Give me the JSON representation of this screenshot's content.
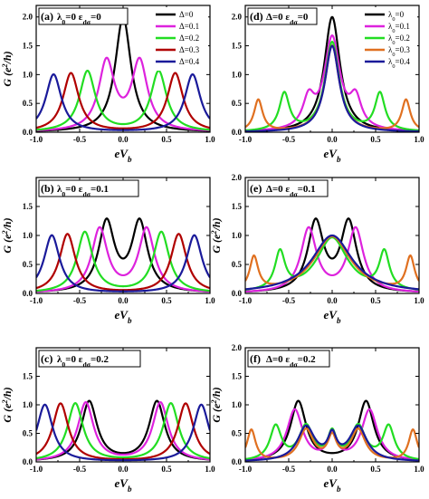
{
  "chart_data": [
    {
      "type": "line",
      "panel_label": "(a)",
      "annotation": [
        "λ",
        "0",
        "=0 ε",
        "dσ",
        "=0"
      ],
      "xlabel": [
        "e",
        "V",
        "b"
      ],
      "ylabel": [
        "G (e",
        "2",
        "/h)"
      ],
      "xlim": [
        -1.0,
        1.0
      ],
      "ylim": [
        0,
        2.2
      ],
      "xticks": [
        "-1.0",
        "-0.5",
        "0.0",
        "0.5",
        "1.0"
      ],
      "yticks": [
        "0.0",
        "0.5",
        "1.0",
        "1.5",
        "2.0"
      ],
      "legend": {
        "placement": "top-right",
        "label_symbol": "Δ"
      },
      "series": [
        {
          "name": "Δ=0",
          "color": "#000000",
          "peaks": [
            {
              "x": 0.0,
              "h": 2.0,
              "w": 0.11
            }
          ]
        },
        {
          "name": "Δ=0.1",
          "color": "#dd22dd",
          "peaks": [
            {
              "x": -0.19,
              "h": 1.2,
              "w": 0.11
            },
            {
              "x": 0.19,
              "h": 1.2,
              "w": 0.11
            }
          ]
        },
        {
          "name": "Δ=0.2",
          "color": "#22dd22",
          "peaks": [
            {
              "x": -0.41,
              "h": 1.05,
              "w": 0.11
            },
            {
              "x": 0.41,
              "h": 1.05,
              "w": 0.11
            }
          ]
        },
        {
          "name": "Δ=0.3",
          "color": "#b00000",
          "peaks": [
            {
              "x": -0.6,
              "h": 1.02,
              "w": 0.11
            },
            {
              "x": 0.6,
              "h": 1.02,
              "w": 0.11
            }
          ]
        },
        {
          "name": "Δ=0.4",
          "color": "#1a1a9a",
          "peaks": [
            {
              "x": -0.8,
              "h": 1.0,
              "w": 0.11
            },
            {
              "x": 0.8,
              "h": 1.0,
              "w": 0.11
            }
          ]
        }
      ]
    },
    {
      "type": "line",
      "panel_label": "(d)",
      "annotation": [
        "Δ=0 ε",
        "dσ",
        "=0"
      ],
      "xlabel": [
        "e",
        "V",
        "b"
      ],
      "ylabel": [],
      "xlim": [
        -1.0,
        1.0
      ],
      "ylim": [
        0,
        2.2
      ],
      "xticks": [
        "-1.0",
        "-0.5",
        "0.0",
        "0.5",
        "1.0"
      ],
      "yticks": [
        "0.0",
        "0.5",
        "1.0",
        "1.5",
        "2.0"
      ],
      "legend": {
        "placement": "top-right",
        "label_symbol": "λ",
        "label_sub": "0"
      },
      "series": [
        {
          "name": "λ0=0",
          "color": "#000000",
          "peaks": [
            {
              "x": 0.0,
              "h": 2.0,
              "w": 0.11
            }
          ]
        },
        {
          "name": "λ0=0.1",
          "color": "#dd22dd",
          "peaks": [
            {
              "x": 0.0,
              "h": 1.6,
              "w": 0.11
            },
            {
              "x": -0.27,
              "h": 0.5,
              "w": 0.08
            },
            {
              "x": 0.27,
              "h": 0.5,
              "w": 0.08
            }
          ]
        },
        {
          "name": "λ0=0.2",
          "color": "#22dd22",
          "peaks": [
            {
              "x": 0.0,
              "h": 1.55,
              "w": 0.1
            },
            {
              "x": -0.55,
              "h": 0.65,
              "w": 0.07
            },
            {
              "x": 0.55,
              "h": 0.65,
              "w": 0.07
            }
          ]
        },
        {
          "name": "λ0=0.3",
          "color": "#e07020",
          "peaks": [
            {
              "x": 0.0,
              "h": 1.5,
              "w": 0.1
            },
            {
              "x": -0.85,
              "h": 0.55,
              "w": 0.06
            },
            {
              "x": 0.85,
              "h": 0.55,
              "w": 0.06
            }
          ]
        },
        {
          "name": "λ0=0.4",
          "color": "#1a1a9a",
          "peaks": [
            {
              "x": 0.0,
              "h": 1.5,
              "w": 0.1
            }
          ]
        }
      ]
    },
    {
      "type": "line",
      "panel_label": "(b)",
      "annotation": [
        "λ",
        "0",
        "=0 ε",
        "dσ",
        "=0.1"
      ],
      "xlabel": [
        "e",
        "V",
        "b"
      ],
      "ylabel": [
        "G (e",
        "2",
        "/h)"
      ],
      "xlim": [
        -1.0,
        1.0
      ],
      "ylim": [
        0,
        2.0
      ],
      "xticks": [
        "-1.0",
        "-0.5",
        "0.0",
        "0.5",
        "1.0"
      ],
      "yticks": [
        "0.0",
        "0.5",
        "1.0",
        "1.5"
      ],
      "series": [
        {
          "color": "#000000",
          "peaks": [
            {
              "x": -0.19,
              "h": 1.2,
              "w": 0.11
            },
            {
              "x": 0.19,
              "h": 1.2,
              "w": 0.11
            }
          ]
        },
        {
          "color": "#dd22dd",
          "peaks": [
            {
              "x": -0.27,
              "h": 1.1,
              "w": 0.11
            },
            {
              "x": 0.27,
              "h": 1.1,
              "w": 0.11
            }
          ]
        },
        {
          "color": "#22dd22",
          "peaks": [
            {
              "x": -0.44,
              "h": 1.05,
              "w": 0.11
            },
            {
              "x": 0.44,
              "h": 1.05,
              "w": 0.11
            }
          ]
        },
        {
          "color": "#b00000",
          "peaks": [
            {
              "x": -0.64,
              "h": 1.02,
              "w": 0.11
            },
            {
              "x": 0.64,
              "h": 1.02,
              "w": 0.11
            }
          ]
        },
        {
          "color": "#1a1a9a",
          "peaks": [
            {
              "x": -0.82,
              "h": 1.0,
              "w": 0.11
            },
            {
              "x": 0.82,
              "h": 1.0,
              "w": 0.11
            }
          ]
        }
      ]
    },
    {
      "type": "line",
      "panel_label": "(e)",
      "annotation": [
        "Δ=0 ε",
        "dσ",
        "=0.1"
      ],
      "xlabel": [
        "e",
        "V",
        "b"
      ],
      "ylabel": [
        "G (e",
        "2",
        "/h)"
      ],
      "xlim": [
        -1.0,
        1.0
      ],
      "ylim": [
        0,
        2.0
      ],
      "xticks": [
        "-1.0",
        "-0.5",
        "0.0",
        "0.5",
        "1.0"
      ],
      "yticks": [
        "0.0",
        "0.5",
        "1.0",
        "1.5",
        "2.0"
      ],
      "series": [
        {
          "color": "#000000",
          "peaks": [
            {
              "x": -0.19,
              "h": 1.2,
              "w": 0.11
            },
            {
              "x": 0.19,
              "h": 1.2,
              "w": 0.11
            }
          ]
        },
        {
          "color": "#dd22dd",
          "peaks": [
            {
              "x": -0.27,
              "h": 1.1,
              "w": 0.11
            },
            {
              "x": 0.27,
              "h": 1.1,
              "w": 0.11
            }
          ]
        },
        {
          "color": "#22dd22",
          "peaks": [
            {
              "x": 0.0,
              "h": 0.95,
              "w": 0.22
            },
            {
              "x": -0.6,
              "h": 0.65,
              "w": 0.07
            },
            {
              "x": 0.6,
              "h": 0.65,
              "w": 0.07
            }
          ]
        },
        {
          "color": "#e07020",
          "peaks": [
            {
              "x": 0.0,
              "h": 0.98,
              "w": 0.26
            },
            {
              "x": -0.9,
              "h": 0.58,
              "w": 0.06
            },
            {
              "x": 0.9,
              "h": 0.58,
              "w": 0.06
            }
          ]
        },
        {
          "color": "#1a1a9a",
          "peaks": [
            {
              "x": 0.0,
              "h": 1.0,
              "w": 0.28
            }
          ]
        }
      ]
    },
    {
      "type": "line",
      "panel_label": "(c)",
      "annotation": [
        "λ",
        "0",
        "=0 ε",
        "dσ",
        "=0.2"
      ],
      "xlabel": [
        "e",
        "V",
        "b"
      ],
      "ylabel": [
        "G (e",
        "2",
        "/h)"
      ],
      "xlim": [
        -1.0,
        1.0
      ],
      "ylim": [
        0,
        2.0
      ],
      "xticks": [
        "-1.0",
        "-0.5",
        "0.0",
        "0.5",
        "1.0"
      ],
      "yticks": [
        "0.0",
        "0.5",
        "1.0",
        "1.5"
      ],
      "series": [
        {
          "color": "#000000",
          "peaks": [
            {
              "x": -0.39,
              "h": 1.05,
              "w": 0.11
            },
            {
              "x": 0.39,
              "h": 1.05,
              "w": 0.11
            }
          ]
        },
        {
          "color": "#dd22dd",
          "peaks": [
            {
              "x": -0.43,
              "h": 1.03,
              "w": 0.11
            },
            {
              "x": 0.43,
              "h": 1.03,
              "w": 0.11
            }
          ]
        },
        {
          "color": "#22dd22",
          "peaks": [
            {
              "x": -0.55,
              "h": 1.02,
              "w": 0.11
            },
            {
              "x": 0.55,
              "h": 1.02,
              "w": 0.11
            }
          ]
        },
        {
          "color": "#b00000",
          "peaks": [
            {
              "x": -0.72,
              "h": 1.02,
              "w": 0.11
            },
            {
              "x": 0.72,
              "h": 1.02,
              "w": 0.11
            }
          ]
        },
        {
          "color": "#1a1a9a",
          "peaks": [
            {
              "x": -0.9,
              "h": 1.0,
              "w": 0.11
            },
            {
              "x": 0.9,
              "h": 1.0,
              "w": 0.11
            }
          ]
        }
      ]
    },
    {
      "type": "line",
      "panel_label": "(f)",
      "annotation": [
        "Δ=0 ε",
        "dσ",
        "=0.2"
      ],
      "xlabel": [
        "e",
        "V",
        "b"
      ],
      "ylabel": [
        "G (e",
        "2",
        "/h)"
      ],
      "xlim": [
        -1.0,
        1.0
      ],
      "ylim": [
        0,
        2.0
      ],
      "xticks": [
        "-1.0",
        "-0.5",
        "0.0",
        "0.5",
        "1.0"
      ],
      "yticks": [
        "0.0",
        "0.5",
        "1.0",
        "1.5",
        "2.0"
      ],
      "series": [
        {
          "color": "#000000",
          "peaks": [
            {
              "x": -0.39,
              "h": 1.05,
              "w": 0.11
            },
            {
              "x": 0.39,
              "h": 1.05,
              "w": 0.11
            }
          ]
        },
        {
          "color": "#dd22dd",
          "peaks": [
            {
              "x": -0.43,
              "h": 0.9,
              "w": 0.11
            },
            {
              "x": 0.43,
              "h": 0.9,
              "w": 0.11
            },
            {
              "x": 0.0,
              "h": 0.45,
              "w": 0.06
            }
          ]
        },
        {
          "color": "#22dd22",
          "peaks": [
            {
              "x": -0.3,
              "h": 0.6,
              "w": 0.1
            },
            {
              "x": 0.3,
              "h": 0.6,
              "w": 0.1
            },
            {
              "x": -0.65,
              "h": 0.6,
              "w": 0.08
            },
            {
              "x": 0.65,
              "h": 0.6,
              "w": 0.08
            },
            {
              "x": 0.0,
              "h": 0.45,
              "w": 0.06
            }
          ]
        },
        {
          "color": "#e07020",
          "peaks": [
            {
              "x": -0.3,
              "h": 0.55,
              "w": 0.1
            },
            {
              "x": 0.3,
              "h": 0.55,
              "w": 0.1
            },
            {
              "x": -0.93,
              "h": 0.55,
              "w": 0.06
            },
            {
              "x": 0.93,
              "h": 0.55,
              "w": 0.06
            },
            {
              "x": 0.0,
              "h": 0.4,
              "w": 0.06
            }
          ]
        },
        {
          "color": "#1a1a9a",
          "peaks": [
            {
              "x": -0.3,
              "h": 0.6,
              "w": 0.12
            },
            {
              "x": 0.3,
              "h": 0.6,
              "w": 0.12
            },
            {
              "x": 0.0,
              "h": 0.4,
              "w": 0.06
            }
          ]
        }
      ]
    }
  ]
}
